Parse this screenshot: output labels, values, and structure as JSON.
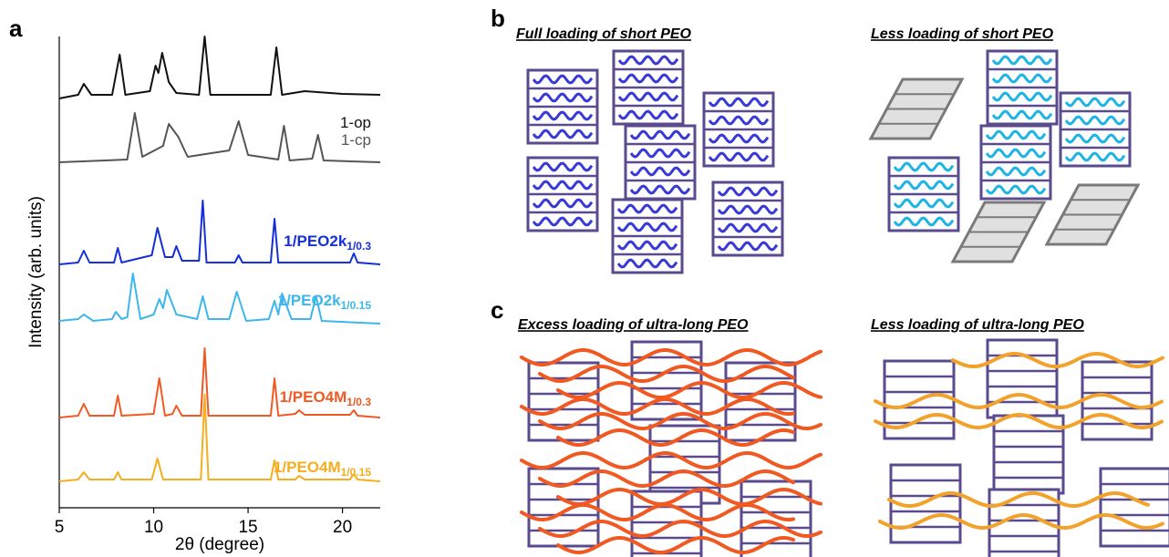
{
  "panel_labels": {
    "a": "a",
    "b": "b",
    "c": "c"
  },
  "diagrams": {
    "b": {
      "left_title": "Full loading of short PEO",
      "right_title": "Less loading of short PEO"
    },
    "c": {
      "left_title": "Excess loading of ultra-long PEO",
      "right_title": "Less loading of ultra-long PEO"
    }
  },
  "chart_data": {
    "type": "line",
    "xlabel": "2θ (degree)",
    "ylabel": "Intensity (arb. units)",
    "xlim": [
      5,
      22
    ],
    "xticks": [
      5,
      10,
      15,
      20
    ],
    "ylim": [
      0,
      517
    ],
    "series": [
      {
        "name": "1-op",
        "color": "#111111",
        "x": [
          5.0,
          6.0,
          6.3,
          6.7,
          7.8,
          8.2,
          8.5,
          9.8,
          10.1,
          10.25,
          10.45,
          10.8,
          11.2,
          12.4,
          12.7,
          13.0,
          16.2,
          16.5,
          16.8,
          18.0,
          20.0,
          22.0
        ],
        "values": [
          449,
          453,
          465,
          453,
          453,
          497,
          453,
          457,
          485,
          477,
          499,
          467,
          455,
          453,
          517,
          453,
          453,
          505,
          453,
          457,
          454,
          453
        ]
      },
      {
        "name": "1-cp",
        "color": "#555555",
        "x": [
          5.0,
          8.6,
          9.0,
          9.4,
          10.5,
          10.8,
          11.3,
          11.8,
          14.0,
          14.5,
          15.0,
          16.6,
          16.9,
          17.2,
          18.4,
          18.7,
          19.0,
          22.0
        ],
        "values": [
          379,
          382,
          433,
          385,
          397,
          421,
          407,
          385,
          392,
          424,
          387,
          382,
          419,
          381,
          383,
          409,
          381,
          379
        ]
      },
      {
        "name": "1/PEO2k",
        "subscript": "1/0.3",
        "color": "#1530d8",
        "x": [
          5.0,
          6.0,
          6.3,
          6.6,
          7.9,
          8.1,
          8.3,
          9.9,
          10.2,
          10.6,
          11.0,
          11.2,
          11.5,
          12.4,
          12.6,
          12.8,
          14.3,
          14.5,
          14.7,
          16.2,
          16.4,
          16.6,
          20.4,
          20.6,
          20.8,
          22.0
        ],
        "values": [
          267,
          269,
          282,
          269,
          269,
          285,
          269,
          277,
          307,
          275,
          275,
          287,
          271,
          271,
          337,
          269,
          269,
          277,
          269,
          269,
          317,
          269,
          269,
          279,
          269,
          267
        ]
      },
      {
        "name": "1/PEO2k",
        "subscript": "1/0.15",
        "color": "#3db6ee",
        "x": [
          5.0,
          6.0,
          6.3,
          6.8,
          7.8,
          8.0,
          8.3,
          8.6,
          8.9,
          9.3,
          10.0,
          10.3,
          10.5,
          10.7,
          11.2,
          12.3,
          12.6,
          12.9,
          14.0,
          14.4,
          14.9,
          16.1,
          16.4,
          16.6,
          16.8,
          17.3,
          18.3,
          18.6,
          18.9,
          22.0
        ],
        "values": [
          205,
          207,
          212,
          205,
          207,
          215,
          207,
          209,
          257,
          207,
          212,
          229,
          219,
          239,
          212,
          207,
          232,
          207,
          207,
          237,
          205,
          207,
          227,
          212,
          235,
          207,
          207,
          232,
          205,
          202
        ]
      },
      {
        "name": "1/PEO4M",
        "subscript": "1/0.3",
        "color": "#f05a22",
        "x": [
          5.0,
          6.0,
          6.3,
          6.6,
          7.9,
          8.1,
          8.3,
          10.0,
          10.3,
          10.6,
          11.0,
          11.2,
          11.5,
          12.5,
          12.7,
          12.9,
          16.2,
          16.4,
          16.6,
          17.5,
          17.7,
          18.0,
          20.4,
          20.6,
          20.8,
          22.0
        ],
        "values": [
          99,
          101,
          114,
          101,
          101,
          123,
          101,
          103,
          142,
          101,
          103,
          112,
          101,
          101,
          175,
          101,
          101,
          142,
          101,
          103,
          107,
          102,
          102,
          107,
          101,
          99
        ]
      },
      {
        "name": "1/PEO4M",
        "subscript": "1/0.15",
        "color": "#f6ad1e",
        "x": [
          5.0,
          6.0,
          6.3,
          6.6,
          7.9,
          8.1,
          8.3,
          9.9,
          10.2,
          10.5,
          12.5,
          12.7,
          12.9,
          16.2,
          16.4,
          16.6,
          17.5,
          17.7,
          18.0,
          20.4,
          20.6,
          20.8,
          22.0
        ],
        "values": [
          29,
          31,
          39,
          31,
          31,
          39,
          31,
          31,
          54,
          31,
          31,
          124,
          31,
          31,
          52,
          31,
          31,
          35,
          31,
          31,
          37,
          31,
          29
        ]
      }
    ]
  }
}
